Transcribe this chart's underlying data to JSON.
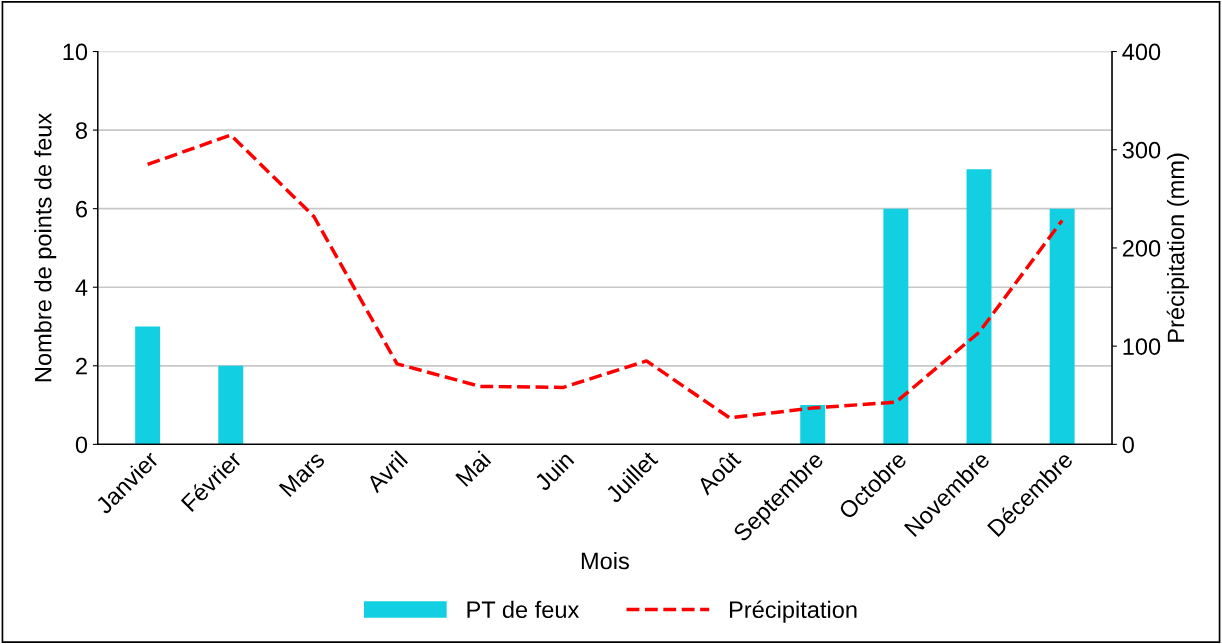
{
  "chart_data": {
    "type": "bar",
    "xlabel": "Mois",
    "ylabel": "Nombre de points de feux",
    "y2label": "Précipitation (mm)",
    "categories": [
      "Janvier",
      "Février",
      "Mars",
      "Avril",
      "Mai",
      "Juin",
      "Juillet",
      "Août",
      "Septembre",
      "Octobre",
      "Novembre",
      "Décembre"
    ],
    "series": [
      {
        "name": "PT de feux",
        "color": "#12cfe2",
        "values": [
          3,
          2,
          0,
          0,
          0,
          0,
          0,
          0,
          1,
          6,
          7,
          6
        ]
      },
      {
        "name": "Précipitation",
        "type": "line",
        "axis": "y2",
        "color": "#ff0000",
        "line_style": "dashed",
        "values": [
          285,
          315,
          232,
          82,
          59,
          58,
          85,
          27,
          37,
          43,
          114,
          228
        ]
      }
    ],
    "ylim": [
      0,
      10
    ],
    "yticks": [
      0,
      2,
      4,
      6,
      8,
      10
    ],
    "y2lim": [
      0,
      400
    ],
    "y2ticks": [
      0,
      100,
      200,
      300,
      400
    ],
    "grid": "y",
    "legend": "bottom"
  }
}
